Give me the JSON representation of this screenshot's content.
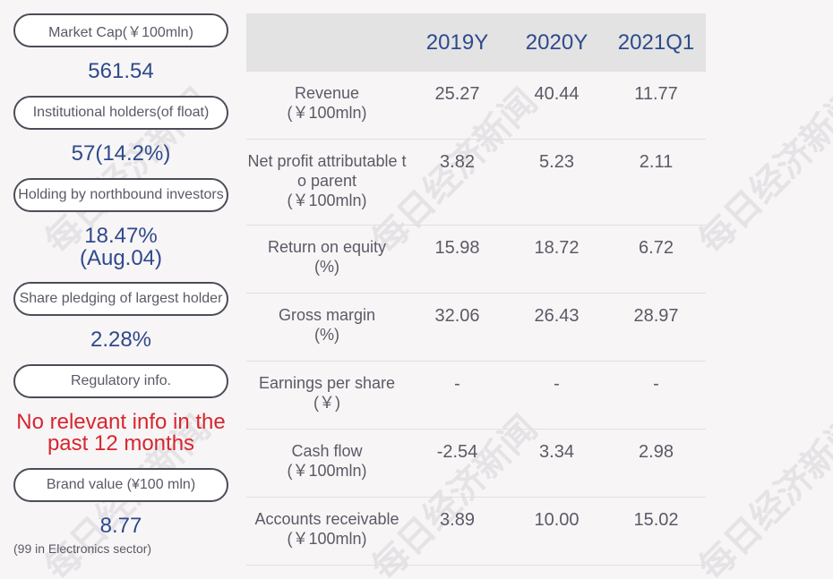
{
  "sidebar": {
    "market_cap_label": "Market Cap(￥100mln)",
    "market_cap_value": "561.54",
    "inst_label": "Institutional holders(of float)",
    "inst_value": "57(14.2%)",
    "northbound_label": "Holding by northbound investors",
    "northbound_value_1": "18.47%",
    "northbound_value_2": "(Aug.04)",
    "pledge_label": "Share pledging of largest holder",
    "pledge_value": "2.28%",
    "reg_label": "Regulatory info.",
    "reg_value_1": "No relevant info in the",
    "reg_value_2": "past 12 months",
    "brand_label": "Brand value (¥100 mln)",
    "brand_value": "8.77",
    "brand_note": "(99 in Electronics sector)"
  },
  "table": {
    "headers": [
      "",
      "2019Y",
      "2020Y",
      "2021Q1"
    ],
    "rows": [
      {
        "label_1": "Revenue",
        "label_2": "(￥100mln)",
        "label_3": "",
        "values": [
          "25.27",
          "40.44",
          "11.77"
        ]
      },
      {
        "label_1": "Net profit attributable t",
        "label_2": "o parent",
        "label_3": "(￥100mln)",
        "values": [
          "3.82",
          "5.23",
          "2.11"
        ]
      },
      {
        "label_1": "Return on equity",
        "label_2": "(%)",
        "label_3": "",
        "values": [
          "15.98",
          "18.72",
          "6.72"
        ]
      },
      {
        "label_1": "Gross margin",
        "label_2": "(%)",
        "label_3": "",
        "values": [
          "32.06",
          "26.43",
          "28.97"
        ]
      },
      {
        "label_1": "Earnings per share",
        "label_2": "(￥)",
        "label_3": "",
        "values": [
          "-",
          "-",
          "-"
        ]
      },
      {
        "label_1": "Cash flow",
        "label_2": "(￥100mln)",
        "label_3": "",
        "values": [
          "-2.54",
          "3.34",
          "2.98"
        ]
      },
      {
        "label_1": "Accounts receivable",
        "label_2": "(￥100mln)",
        "label_3": "",
        "values": [
          "3.89",
          "10.00",
          "15.02"
        ]
      }
    ]
  },
  "watermark": "每日经济新闻",
  "colors": {
    "value_blue": "#2e4a8c",
    "alert_red": "#d7262e",
    "header_bg": "#e3e3e3",
    "page_bg": "#f8f5f6"
  }
}
